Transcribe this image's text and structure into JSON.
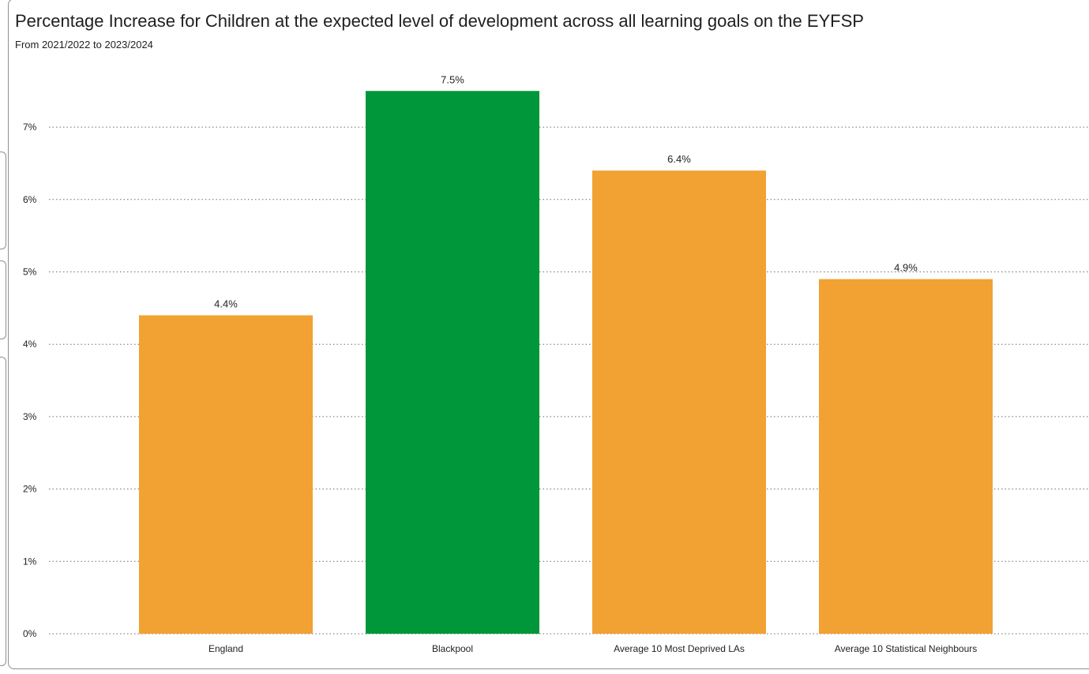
{
  "chart_data": {
    "type": "bar",
    "title": "Percentage Increase for Children at the expected level of development across all learning goals on the EYFSP",
    "subtitle": "From 2021/2022 to 2023/2024",
    "categories": [
      "England",
      "Blackpool",
      "Average 10 Most Deprived LAs",
      "Average 10 Statistical Neighbours"
    ],
    "values": [
      4.4,
      7.5,
      6.4,
      4.9
    ],
    "value_labels": [
      "4.4%",
      "7.5%",
      "6.4%",
      "4.9%"
    ],
    "bar_colors": [
      "#F2A133",
      "#00963A",
      "#F2A133",
      "#F2A133"
    ],
    "ylim": [
      0,
      7.5
    ],
    "yticks": [
      0,
      1,
      2,
      3,
      4,
      5,
      6,
      7
    ],
    "ytick_labels": [
      "0%",
      "1%",
      "2%",
      "3%",
      "4%",
      "5%",
      "6%",
      "7%"
    ],
    "xlabel": "",
    "ylabel": "",
    "grid": true,
    "grid_style": "dotted",
    "legend": "none"
  }
}
